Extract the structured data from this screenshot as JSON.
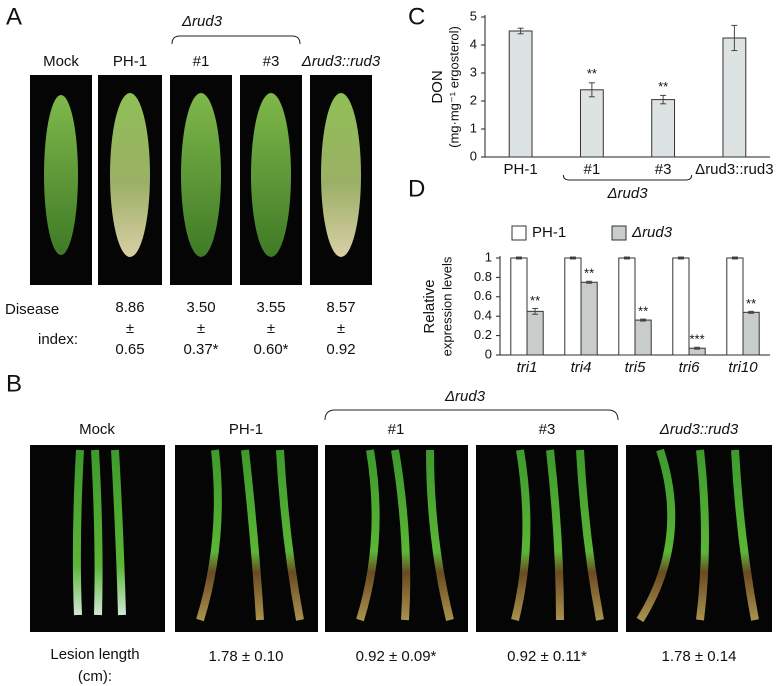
{
  "panel_a": {
    "letter": "A",
    "group_label": "Δrud3",
    "labels": [
      "Mock",
      "PH-1",
      "#1",
      "#3",
      "Δrud3::rud3"
    ],
    "row_label": [
      "Disease",
      "index:"
    ],
    "pm": "±",
    "disease_index": [
      {
        "mean": "8.86",
        "sd": "0.65"
      },
      {
        "mean": "3.50",
        "sd": "0.37*"
      },
      {
        "mean": "3.55",
        "sd": "0.60*"
      },
      {
        "mean": "8.57",
        "sd": "0.92"
      }
    ]
  },
  "panel_b": {
    "letter": "B",
    "group_label": "Δrud3",
    "labels": [
      "Mock",
      "PH-1",
      "#1",
      "#3",
      "Δrud3::rud3"
    ],
    "row_label": [
      "Lesion length",
      "(cm):"
    ],
    "lesion_length": [
      "1.78 ± 0.10",
      "0.92 ± 0.09*",
      "0.92 ± 0.11*",
      "1.78 ± 0.14"
    ]
  },
  "chart_data": [
    {
      "type": "bar",
      "panel": "C",
      "y_label": [
        "DON",
        "(mg·mg⁻¹ ergosterol)"
      ],
      "categories": [
        "PH-1",
        "#1",
        "#3",
        "Δrud3::rud3"
      ],
      "group_label": "Δrud3",
      "values": [
        4.5,
        2.4,
        2.05,
        4.25
      ],
      "errors": [
        0.1,
        0.25,
        0.15,
        0.45
      ],
      "annotations": [
        null,
        "**",
        "**",
        null
      ],
      "color": "#dde3e2",
      "ylim": [
        0,
        5
      ],
      "yticks": [
        0,
        1,
        2,
        3,
        4,
        5
      ]
    },
    {
      "type": "grouped_bar",
      "panel": "D",
      "y_label": [
        "Relative",
        "expression levels"
      ],
      "categories": [
        "tri1",
        "tri4",
        "tri5",
        "tri6",
        "tri10"
      ],
      "series": [
        {
          "name": "PH-1",
          "color": "#ffffff",
          "values": [
            1,
            1,
            1,
            1,
            1
          ],
          "errors": [
            0.01,
            0.01,
            0.01,
            0.01,
            0.01
          ]
        },
        {
          "name": "Δrud3",
          "color": "#c8ccca",
          "values": [
            0.45,
            0.75,
            0.36,
            0.07,
            0.44
          ],
          "errors": [
            0.03,
            0.01,
            0.01,
            0.01,
            0.01
          ],
          "annotations": [
            "**",
            "**",
            "**",
            "***",
            "**"
          ]
        }
      ],
      "legend": "top",
      "ylim": [
        0,
        1
      ],
      "yticks": [
        0,
        0.2,
        0.4,
        0.6,
        0.8,
        1
      ]
    }
  ]
}
